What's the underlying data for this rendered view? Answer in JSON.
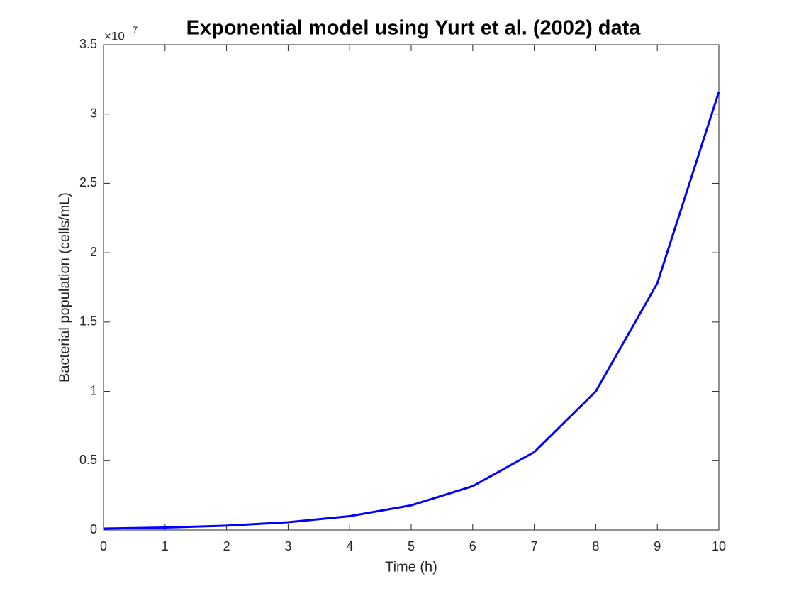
{
  "chart_data": {
    "type": "line",
    "title": "Exponential model using Yurt et al. (2002) data",
    "x_label": "Time (h)",
    "y_label": "Bacterial population (cells/mL)",
    "yscale_base": "×10",
    "yscale_exponent": "7",
    "x": [
      0,
      1,
      2,
      3,
      4,
      5,
      6,
      7,
      8,
      9,
      10
    ],
    "series": [
      {
        "color": "#0000ff",
        "values": [
          0.01,
          0.0178,
          0.0316,
          0.0562,
          0.1,
          0.178,
          0.316,
          0.562,
          1.0,
          1.78,
          3.16
        ]
      }
    ],
    "xlim": [
      0,
      10
    ],
    "xticks": [
      0,
      1,
      2,
      3,
      4,
      5,
      6,
      7,
      8,
      9,
      10
    ],
    "ylim": [
      0,
      3.5
    ],
    "yticks": [
      0,
      0.5,
      1,
      1.5,
      2,
      2.5,
      3,
      3.5
    ],
    "grid": false
  }
}
